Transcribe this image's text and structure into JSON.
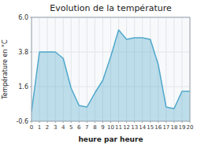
{
  "chart_data": {
    "type": "area",
    "title": "Evolution de la température",
    "xlabel": "heure par heure",
    "ylabel": "Température en °C",
    "color": "#50a8cc",
    "x": [
      0,
      1,
      2,
      3,
      4,
      5,
      6,
      7,
      8,
      9,
      10,
      11,
      12,
      13,
      14,
      15,
      16,
      17,
      18,
      19,
      20
    ],
    "values": [
      0.0,
      3.8,
      3.8,
      3.8,
      3.4,
      1.5,
      0.4,
      0.3,
      1.2,
      2.0,
      3.5,
      5.2,
      4.6,
      4.7,
      4.7,
      4.6,
      3.0,
      0.3,
      0.2,
      1.3,
      1.3
    ],
    "xlim": [
      0,
      20
    ],
    "xticks": [
      0,
      1,
      2,
      3,
      4,
      5,
      6,
      7,
      8,
      9,
      10,
      11,
      12,
      13,
      14,
      15,
      16,
      17,
      18,
      19,
      20
    ],
    "ylim": [
      -0.6,
      6.0
    ],
    "yticks": [
      -0.6,
      1.6,
      3.8,
      {
        "value": 6.0,
        "label": "6.0"
      }
    ],
    "grid": true
  }
}
